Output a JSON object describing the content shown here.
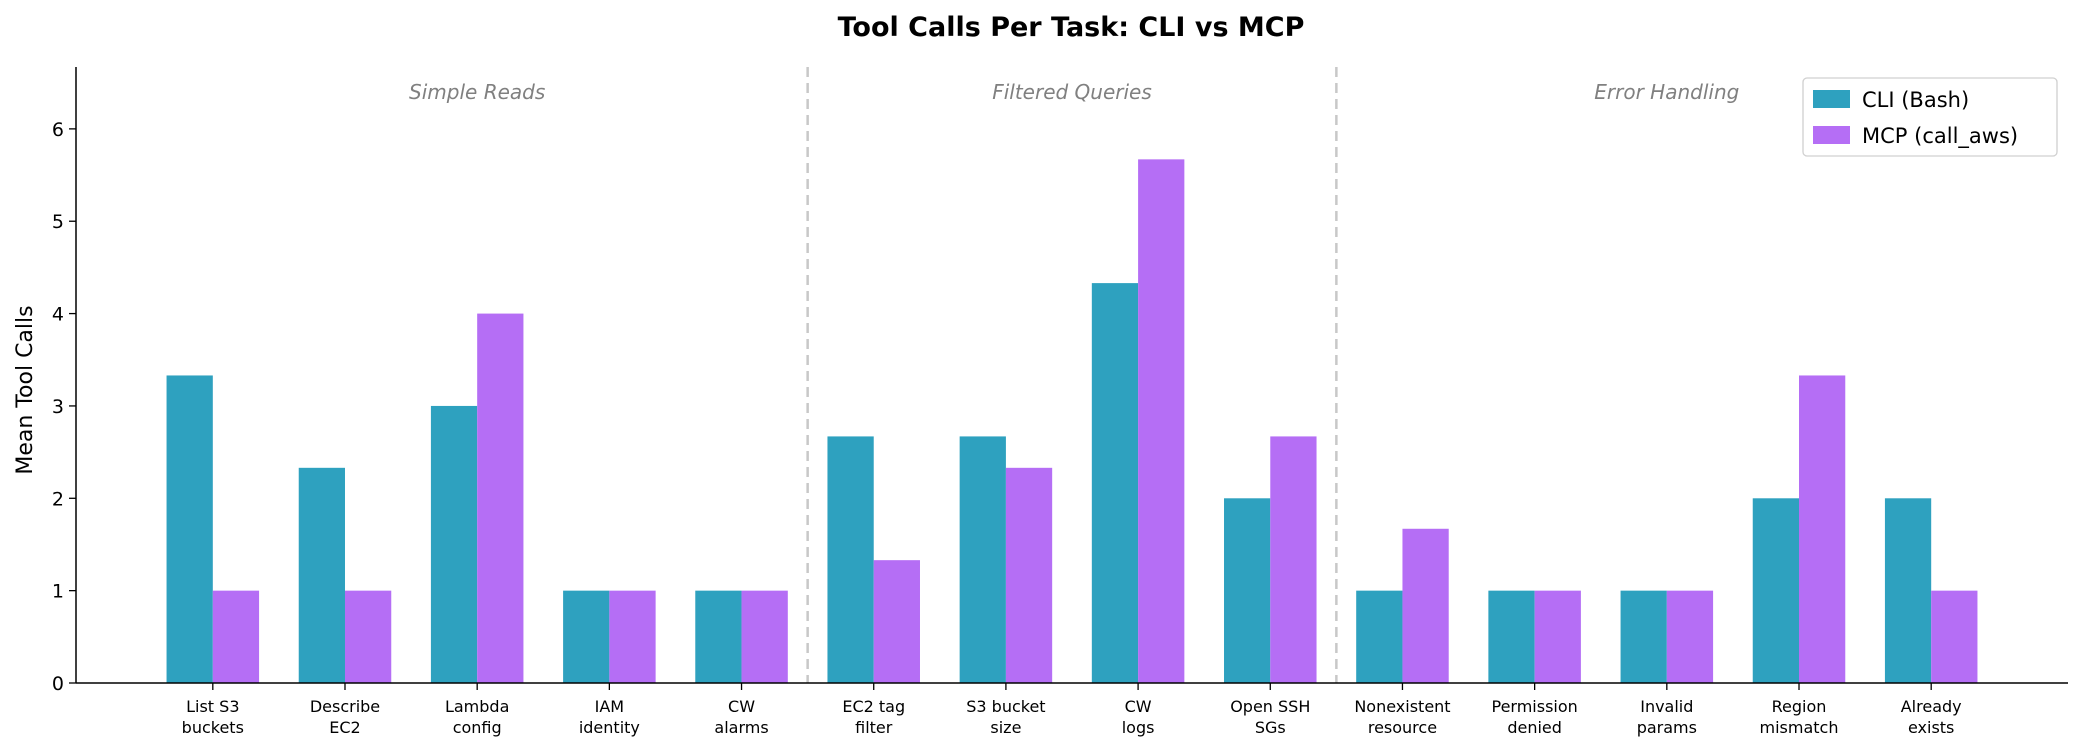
{
  "chart_data": {
    "type": "bar",
    "title": "Tool Calls Per Task: CLI vs MCP",
    "xlabel": "",
    "ylabel": "Mean Tool Calls",
    "ylim": [
      0,
      6.67
    ],
    "yticks": [
      "0",
      "1",
      "2",
      "3",
      "4",
      "5",
      "6"
    ],
    "grid": false,
    "legend_placement": "top-right",
    "categories": [
      [
        "List S3",
        "buckets"
      ],
      [
        "Describe",
        "EC2"
      ],
      [
        "Lambda",
        "config"
      ],
      [
        "IAM",
        "identity"
      ],
      [
        "CW",
        "alarms"
      ],
      [
        "EC2 tag",
        "filter"
      ],
      [
        "S3 bucket",
        "size"
      ],
      [
        "CW",
        "logs"
      ],
      [
        "Open SSH",
        "SGs"
      ],
      [
        "Nonexistent",
        "resource"
      ],
      [
        "Permission",
        "denied"
      ],
      [
        "Invalid",
        "params"
      ],
      [
        "Region",
        "mismatch"
      ],
      [
        "Already",
        "exists"
      ]
    ],
    "series": [
      {
        "name": "CLI (Bash)",
        "color": "#2ea1bf",
        "values": [
          3.33,
          2.33,
          3,
          1,
          1,
          2.67,
          2.67,
          4.33,
          2,
          1,
          1,
          1,
          2,
          2
        ]
      },
      {
        "name": "MCP (call_aws)",
        "color": "#b56ef5",
        "values": [
          1,
          1,
          4,
          1,
          1,
          1.33,
          2.33,
          5.67,
          2.67,
          1.67,
          1,
          1,
          3.33,
          1
        ]
      }
    ],
    "groups": [
      {
        "label": "Simple Reads",
        "from": 0,
        "to": 4
      },
      {
        "label": "Filtered Queries",
        "from": 5,
        "to": 8
      },
      {
        "label": "Error Handling",
        "from": 9,
        "to": 13
      }
    ]
  }
}
